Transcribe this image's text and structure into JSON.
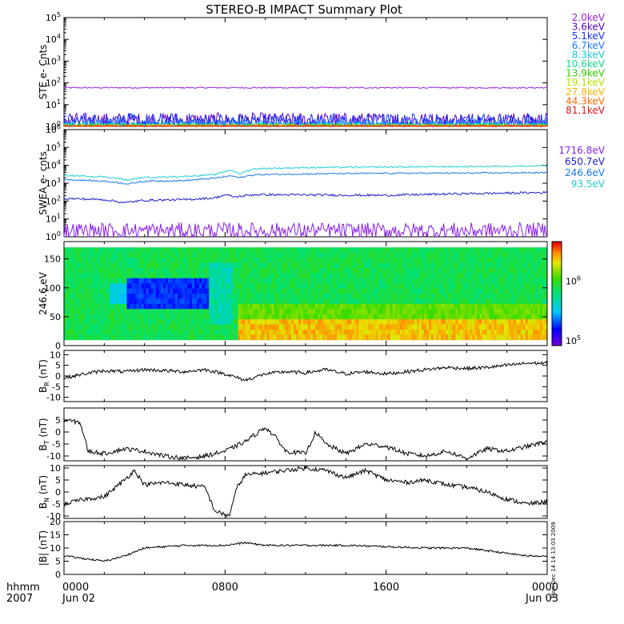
{
  "title": "STEREO-B IMPACT Summary Plot",
  "footer": {
    "left_top": "hhmm",
    "left_bottom": "2007",
    "side_stamp": "Mon Dec 14 14:13:03 2009"
  },
  "x_axis": {
    "range_hours": [
      0,
      24
    ],
    "ticks": [
      {
        "hour": 0,
        "line1": "0000",
        "line2": "Jun 02"
      },
      {
        "hour": 8,
        "line1": "0800",
        "line2": ""
      },
      {
        "hour": 16,
        "line1": "1600",
        "line2": ""
      },
      {
        "hour": 24,
        "line1": "0000",
        "line2": "Jun 03"
      }
    ]
  },
  "chart_data": [
    {
      "type": "line",
      "name": "ste",
      "ylabel": "STE e- Cnts",
      "yscale": "log",
      "ylim": [
        1,
        100000
      ],
      "ytick_exponents": [
        0,
        1,
        2,
        3,
        4,
        5
      ],
      "legend_placement": "right",
      "series": [
        {
          "name": "2.0keV",
          "color": "#9a1fe0",
          "level": 60,
          "noise": 0.03
        },
        {
          "name": "3.6keV",
          "color": "#5a00c8",
          "level": 1.9,
          "noise": 0.35
        },
        {
          "name": "5.1keV",
          "color": "#1430ff",
          "level": 1.6,
          "noise": 0.4
        },
        {
          "name": "6.7keV",
          "color": "#1a78ff",
          "level": 1.25,
          "noise": 0.25
        },
        {
          "name": "8.3keV",
          "color": "#16c8dc",
          "level": 1.1,
          "noise": 0.15
        },
        {
          "name": "10.6keV",
          "color": "#10d890",
          "level": 1.08,
          "noise": 0.12
        },
        {
          "name": "13.9keV",
          "color": "#2ecc00",
          "level": 1.05,
          "noise": 0.1
        },
        {
          "name": "19.1keV",
          "color": "#b4e000",
          "level": 1.04,
          "noise": 0.08
        },
        {
          "name": "27.8keV",
          "color": "#ffb000",
          "level": 1.03,
          "noise": 0.07
        },
        {
          "name": "44.3keV",
          "color": "#ff6a00",
          "level": 1.02,
          "noise": 0.05
        },
        {
          "name": "81.1keV",
          "color": "#e01010",
          "level": 1.01,
          "noise": 0.04
        }
      ]
    },
    {
      "type": "line",
      "name": "swea",
      "ylabel": "SWEA e- cnts",
      "yscale": "log",
      "ylim": [
        1,
        1000000
      ],
      "ytick_exponents": [
        0,
        1,
        2,
        3,
        4,
        5,
        6
      ],
      "legend_placement": "right",
      "series": [
        {
          "name": "1716.8eV",
          "color": "#8a1fe8",
          "points": [
            [
              0,
              2.2
            ],
            [
              24,
              2.2
            ]
          ],
          "noise": 0.45
        },
        {
          "name": "650.7eV",
          "color": "#1a1ad0",
          "points": [
            [
              0,
              140
            ],
            [
              2,
              120
            ],
            [
              3,
              80
            ],
            [
              4,
              110
            ],
            [
              6,
              120
            ],
            [
              7.5,
              150
            ],
            [
              8,
              220
            ],
            [
              8.5,
              170
            ],
            [
              9.5,
              230
            ],
            [
              12,
              220
            ],
            [
              16,
              210
            ],
            [
              20,
              260
            ],
            [
              24,
              300
            ]
          ],
          "noise": 0.06
        },
        {
          "name": "246.6eV",
          "color": "#1a78f0",
          "points": [
            [
              0,
              1600
            ],
            [
              2,
              1300
            ],
            [
              3.2,
              900
            ],
            [
              4,
              1300
            ],
            [
              6,
              1400
            ],
            [
              7.5,
              1900
            ],
            [
              8.3,
              2600
            ],
            [
              8.7,
              2000
            ],
            [
              9.5,
              3000
            ],
            [
              12,
              3300
            ],
            [
              16,
              3600
            ],
            [
              20,
              3700
            ],
            [
              24,
              3900
            ]
          ],
          "noise": 0.04
        },
        {
          "name": "93.5eV",
          "color": "#20d0d0",
          "points": [
            [
              0,
              2700
            ],
            [
              2,
              2300
            ],
            [
              3.2,
              1500
            ],
            [
              4,
              2100
            ],
            [
              6,
              2400
            ],
            [
              7.5,
              3000
            ],
            [
              8.3,
              5500
            ],
            [
              8.7,
              3200
            ],
            [
              9.5,
              6500
            ],
            [
              12,
              7500
            ],
            [
              16,
              8000
            ],
            [
              20,
              8500
            ],
            [
              24,
              9500
            ]
          ],
          "noise": 0.04
        }
      ]
    },
    {
      "type": "heatmap",
      "name": "pad",
      "ylabel": "246.6 eV",
      "ylim": [
        0,
        180
      ],
      "yticks": [
        0,
        50,
        100,
        150
      ],
      "colorbar": {
        "scale": "log",
        "ticks": [
          {
            "exp": 5,
            "value": 100000
          },
          {
            "exp": 6,
            "value": 1000000
          }
        ]
      }
    },
    {
      "type": "line",
      "name": "br",
      "ylabel_main": "B",
      "ylabel_sub": "R",
      "ylabel_tail": " (nT)",
      "ylim": [
        -12,
        12
      ],
      "yticks": [
        -10,
        -5,
        0,
        5,
        10
      ],
      "points": [
        [
          0,
          -1
        ],
        [
          1,
          1
        ],
        [
          2,
          2.5
        ],
        [
          3,
          2
        ],
        [
          4,
          3
        ],
        [
          5,
          2.5
        ],
        [
          6,
          2
        ],
        [
          7,
          3
        ],
        [
          8,
          1
        ],
        [
          9,
          -2
        ],
        [
          10,
          1
        ],
        [
          11,
          2
        ],
        [
          12,
          1.5
        ],
        [
          13,
          3
        ],
        [
          14,
          1
        ],
        [
          15,
          2
        ],
        [
          16,
          1
        ],
        [
          17,
          2
        ],
        [
          18,
          3
        ],
        [
          19,
          4
        ],
        [
          20,
          3.5
        ],
        [
          21,
          4
        ],
        [
          22,
          5
        ],
        [
          23,
          6
        ],
        [
          24,
          6
        ]
      ],
      "noise": 0.8
    },
    {
      "type": "line",
      "name": "bt",
      "ylabel_main": "B",
      "ylabel_sub": "T",
      "ylabel_tail": " (nT)",
      "ylim": [
        -12,
        10
      ],
      "yticks": [
        -10,
        -5,
        0,
        5
      ],
      "points": [
        [
          0,
          5
        ],
        [
          0.8,
          4
        ],
        [
          1.2,
          -8
        ],
        [
          2,
          -9
        ],
        [
          3,
          -7
        ],
        [
          4,
          -8
        ],
        [
          5,
          -10
        ],
        [
          6,
          -11
        ],
        [
          7,
          -10
        ],
        [
          8,
          -8
        ],
        [
          9,
          -4
        ],
        [
          10,
          2
        ],
        [
          10.6,
          -3
        ],
        [
          11,
          -8
        ],
        [
          12,
          -9
        ],
        [
          12.5,
          0
        ],
        [
          13,
          -5
        ],
        [
          14,
          -9
        ],
        [
          15,
          -5
        ],
        [
          16,
          -6
        ],
        [
          17,
          -9
        ],
        [
          18,
          -10
        ],
        [
          19,
          -8
        ],
        [
          20,
          -11
        ],
        [
          21,
          -7
        ],
        [
          22,
          -8
        ],
        [
          23,
          -6
        ],
        [
          24,
          -4
        ]
      ],
      "noise": 0.9
    },
    {
      "type": "line",
      "name": "bn",
      "ylabel_main": "B",
      "ylabel_sub": "N",
      "ylabel_tail": " (nT)",
      "ylim": [
        -11,
        11
      ],
      "yticks": [
        -10,
        -5,
        0,
        5,
        10
      ],
      "points": [
        [
          0,
          -5
        ],
        [
          1,
          -3
        ],
        [
          2,
          -2
        ],
        [
          3,
          5
        ],
        [
          3.5,
          9
        ],
        [
          4,
          3
        ],
        [
          5,
          4
        ],
        [
          6,
          3
        ],
        [
          7,
          2
        ],
        [
          7.5,
          -8
        ],
        [
          8.2,
          -10
        ],
        [
          8.6,
          2
        ],
        [
          9,
          7
        ],
        [
          10,
          8
        ],
        [
          11,
          9
        ],
        [
          12,
          10
        ],
        [
          13,
          9
        ],
        [
          14,
          6
        ],
        [
          15,
          9
        ],
        [
          16,
          5
        ],
        [
          17,
          4
        ],
        [
          18,
          5
        ],
        [
          19,
          3
        ],
        [
          20,
          2
        ],
        [
          21,
          0
        ],
        [
          22,
          -3
        ],
        [
          23,
          -5
        ],
        [
          24,
          -4
        ]
      ],
      "noise": 0.9
    },
    {
      "type": "line",
      "name": "bmag",
      "ylabel": "|B| (nT)",
      "ylim": [
        0,
        20
      ],
      "yticks": [
        0,
        5,
        10,
        15,
        20
      ],
      "points": [
        [
          0,
          7
        ],
        [
          1,
          6
        ],
        [
          2,
          5
        ],
        [
          3,
          7
        ],
        [
          4,
          10
        ],
        [
          6,
          11
        ],
        [
          8,
          11
        ],
        [
          9,
          12
        ],
        [
          10,
          11
        ],
        [
          12,
          11
        ],
        [
          14,
          11
        ],
        [
          16,
          10.5
        ],
        [
          18,
          10
        ],
        [
          20,
          10
        ],
        [
          21,
          9
        ],
        [
          22,
          8
        ],
        [
          23,
          7
        ],
        [
          24,
          7
        ]
      ],
      "noise": 0.35
    }
  ]
}
